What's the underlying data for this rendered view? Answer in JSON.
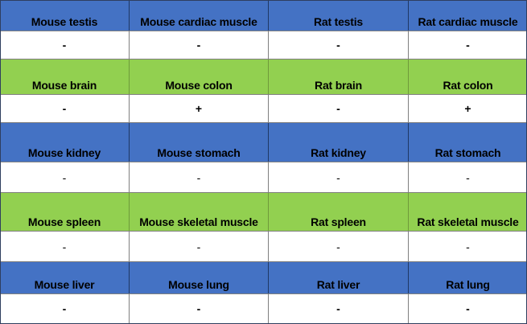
{
  "table": {
    "sections": [
      {
        "header": [
          "Mouse testis",
          "Mouse cardiac muscle",
          "Rat testis",
          "Rat cardiac muscle"
        ],
        "values": [
          "-",
          "-",
          "-",
          "-"
        ],
        "header_color": "#4472c4",
        "values_bold": true
      },
      {
        "header": [
          "Mouse brain",
          "Mouse colon",
          "Rat brain",
          "Rat colon"
        ],
        "values": [
          "-",
          "+",
          "-",
          "+"
        ],
        "header_color": "#92d050",
        "values_bold": true
      },
      {
        "header": [
          "Mouse kidney",
          "Mouse stomach",
          "Rat kidney",
          "Rat stomach"
        ],
        "values": [
          "-",
          "-",
          "-",
          "-"
        ],
        "header_color": "#4472c4",
        "values_bold": false
      },
      {
        "header": [
          "Mouse spleen",
          "Mouse skeletal muscle",
          "Rat spleen",
          "Rat skeletal muscle"
        ],
        "values": [
          "-",
          "-",
          "-",
          "-"
        ],
        "header_color": "#92d050",
        "values_bold": false
      },
      {
        "header": [
          "Mouse liver",
          "Mouse lung",
          "Rat liver",
          "Rat lung"
        ],
        "values": [
          "-",
          "-",
          "-",
          "-"
        ],
        "header_color": "#4472c4",
        "values_bold": true
      }
    ]
  }
}
